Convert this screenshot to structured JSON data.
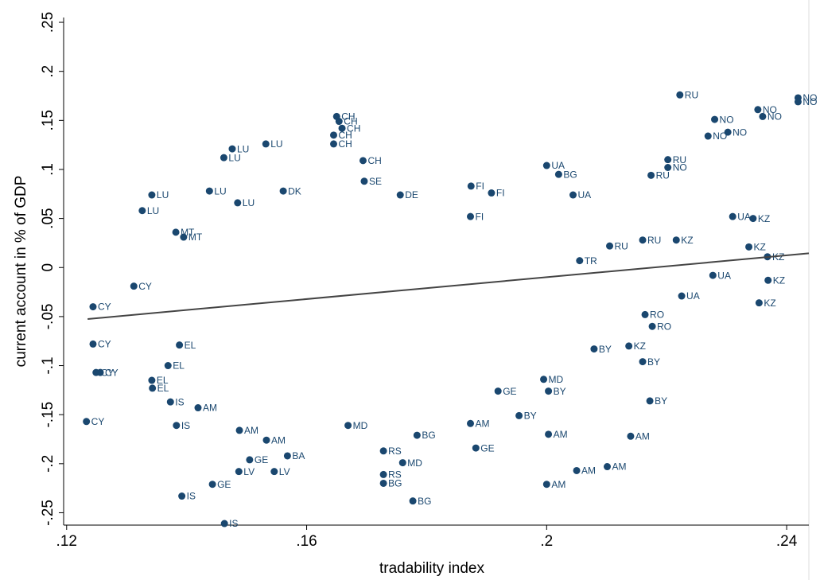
{
  "chart_data": {
    "type": "scatter",
    "x_label": "tradability index",
    "y_label": "current account in % of GDP",
    "xlim": [
      0.1195,
      0.2437
    ],
    "ylim": [
      -0.2626,
      0.2549
    ],
    "xticks": [
      {
        "value": 0.12,
        "label": ".12"
      },
      {
        "value": 0.16,
        "label": ".16"
      },
      {
        "value": 0.2,
        "label": ".2"
      },
      {
        "value": 0.24,
        "label": ".24"
      }
    ],
    "yticks": [
      {
        "value": -0.25,
        "label": "-.25"
      },
      {
        "value": -0.2,
        "label": "-.2"
      },
      {
        "value": -0.15,
        "label": "-.15"
      },
      {
        "value": -0.1,
        "label": "-.1"
      },
      {
        "value": -0.05,
        "label": "-.05"
      },
      0,
      {
        "value": 0.05,
        "label": ".05"
      },
      {
        "value": 0.1,
        "label": ".1"
      },
      {
        "value": 0.15,
        "label": ".15"
      },
      {
        "value": 0.2,
        "label": ".2"
      },
      {
        "value": 0.25,
        "label": ".25"
      }
    ],
    "color": "#1a476f",
    "labels": [
      "RU",
      "NO",
      "NO",
      "NO",
      "NO",
      "NO",
      "NO",
      "NO",
      "RU",
      "NO",
      "RU",
      "UA",
      "BG",
      "UA",
      "FI",
      "FI",
      "FI",
      "CH",
      "CH",
      "CH",
      "CH",
      "CH",
      "CH",
      "LU",
      "LU",
      "LU",
      "LU",
      "LU",
      "LU",
      "LU",
      "MT",
      "MT",
      "CY",
      "CY",
      "CY",
      "CY",
      "CY",
      "CY",
      "EL",
      "EL",
      "EL",
      "EL",
      "IS",
      "IS",
      "IS",
      "IS",
      "AM",
      "AM",
      "AM",
      "BA",
      "GE",
      "LV",
      "LV",
      "GE",
      "MD",
      "BG",
      "RS",
      "RS",
      "BG",
      "BG",
      "MD",
      "AM",
      "GE",
      "AM",
      "AM",
      "AM",
      "AM",
      "AM",
      "BY",
      "BY",
      "BY",
      "BY",
      "GE",
      "MD",
      "KZ",
      "KZ",
      "KZ",
      "KZ",
      "KZ",
      "UA",
      "UA",
      "RU",
      "KZ",
      "RU",
      "TR",
      "RO",
      "RO",
      "KZ",
      "BY",
      "UA",
      "DE",
      "SE",
      "DK"
    ],
    "x": [
      0.2222,
      0.2419,
      0.2419,
      0.2352,
      0.236,
      0.228,
      0.2302,
      0.2269,
      0.2202,
      0.2202,
      0.2174,
      0.2,
      0.202,
      0.2044,
      0.1874,
      0.1908,
      0.1873,
      0.165,
      0.1654,
      0.1659,
      0.1645,
      0.1645,
      0.1694,
      0.1532,
      0.1476,
      0.1462,
      0.1342,
      0.1326,
      0.1438,
      0.1485,
      0.1382,
      0.1395,
      0.1244,
      0.1312,
      0.1244,
      0.1249,
      0.1256,
      0.1233,
      0.1369,
      0.1388,
      0.1342,
      0.1343,
      0.1373,
      0.1383,
      0.1392,
      0.1463,
      0.1419,
      0.1488,
      0.1533,
      0.1568,
      0.1505,
      0.1487,
      0.1546,
      0.1443,
      0.1669,
      0.1784,
      0.1728,
      0.1728,
      0.1728,
      0.1777,
      0.176,
      0.1873,
      0.1882,
      0.2003,
      0.2,
      0.205,
      0.2101,
      0.214,
      0.2172,
      0.216,
      0.1954,
      0.2003,
      0.1919,
      0.1995,
      0.2344,
      0.2337,
      0.2368,
      0.2369,
      0.2354,
      0.231,
      0.2277,
      0.216,
      0.2216,
      0.2105,
      0.2055,
      0.2164,
      0.2176,
      0.2137,
      0.2079,
      0.2225,
      0.1756,
      0.1696,
      0.1561
    ],
    "y": [
      0.176,
      0.173,
      0.169,
      0.161,
      0.154,
      0.151,
      0.138,
      0.134,
      0.11,
      0.102,
      0.094,
      0.104,
      0.095,
      0.074,
      0.083,
      0.076,
      0.052,
      0.154,
      0.149,
      0.142,
      0.135,
      0.126,
      0.109,
      0.126,
      0.121,
      0.112,
      0.074,
      0.058,
      0.078,
      0.066,
      0.036,
      0.031,
      -0.04,
      -0.019,
      -0.078,
      -0.107,
      -0.107,
      -0.157,
      -0.1,
      -0.079,
      -0.115,
      -0.123,
      -0.137,
      -0.161,
      -0.233,
      -0.261,
      -0.143,
      -0.166,
      -0.176,
      -0.192,
      -0.196,
      -0.208,
      -0.208,
      -0.221,
      -0.161,
      -0.171,
      -0.187,
      -0.211,
      -0.22,
      -0.238,
      -0.199,
      -0.159,
      -0.184,
      -0.17,
      -0.221,
      -0.207,
      -0.203,
      -0.172,
      -0.136,
      -0.096,
      -0.151,
      -0.126,
      -0.126,
      -0.114,
      0.05,
      0.021,
      0.011,
      -0.013,
      -0.036,
      0.052,
      -0.008,
      0.028,
      0.028,
      0.022,
      0.007,
      -0.048,
      -0.06,
      -0.08,
      -0.083,
      -0.029,
      0.074,
      0.088,
      0.078
    ],
    "fit": {
      "color": "#444444",
      "x": [
        0.1235,
        0.2437
      ],
      "y": [
        -0.0525,
        0.0145
      ]
    }
  }
}
